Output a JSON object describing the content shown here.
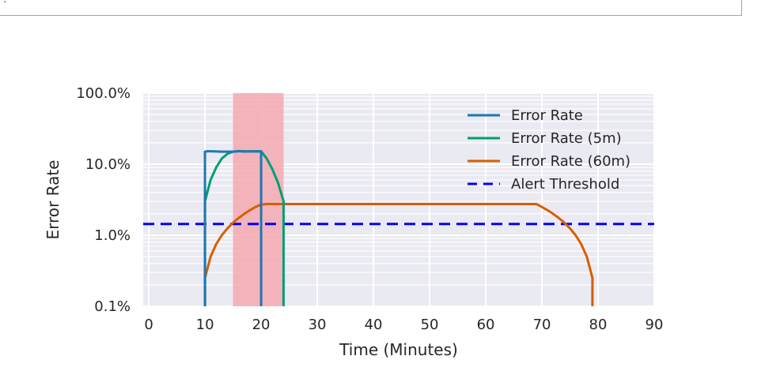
{
  "top_panel": {
    "text": "'."
  },
  "chart_data": {
    "type": "line",
    "title": "",
    "xlabel": "Time (Minutes)",
    "ylabel": "Error Rate",
    "xlim": [
      -1,
      90
    ],
    "ylim": [
      0.001,
      1.0
    ],
    "yscale": "log",
    "xticks": [
      0,
      10,
      20,
      30,
      40,
      50,
      60,
      70,
      80,
      90
    ],
    "xtick_labels": [
      "0",
      "10",
      "20",
      "30",
      "40",
      "50",
      "60",
      "70",
      "80",
      "90"
    ],
    "yticks": [
      0.001,
      0.01,
      0.1,
      1.0
    ],
    "ytick_labels": [
      "0.1%",
      "1.0%",
      "10.0%",
      "100.0%"
    ],
    "grid": true,
    "background": "#eaeaf2",
    "legend_position": "top-right",
    "highlight_span": {
      "x": [
        15,
        24
      ],
      "color": "#f4a9b0"
    },
    "series": [
      {
        "name": "Error Rate",
        "color": "#1f77b4",
        "style": "solid",
        "x": [
          10,
          10,
          10.5,
          11,
          12,
          13,
          14,
          15,
          16,
          17,
          18,
          19,
          20,
          20,
          20
        ],
        "y": [
          0.001,
          0.15,
          0.152,
          0.152,
          0.151,
          0.15,
          0.15,
          0.15,
          0.152,
          0.152,
          0.151,
          0.151,
          0.151,
          0.02,
          0.001
        ]
      },
      {
        "name": "Error Rate (5m)",
        "color": "#009e73",
        "style": "solid",
        "x": [
          10,
          10,
          10,
          11,
          12,
          13,
          14,
          15,
          16,
          17,
          18,
          19,
          20,
          21,
          22,
          23,
          24,
          24
        ],
        "y": [
          0.001,
          0.003,
          0.03,
          0.06,
          0.09,
          0.12,
          0.14,
          0.15,
          0.153,
          0.15,
          0.152,
          0.152,
          0.152,
          0.12,
          0.085,
          0.055,
          0.03,
          0.001
        ]
      },
      {
        "name": "Error Rate (60m)",
        "color": "#d55e00",
        "style": "solid",
        "x": [
          10,
          10,
          11,
          12,
          13,
          14,
          15,
          16,
          17,
          18,
          19,
          20,
          21,
          22,
          23,
          24,
          30,
          40,
          50,
          60,
          69,
          70,
          71,
          72,
          73,
          74,
          75,
          76,
          77,
          78,
          79,
          79
        ],
        "y": [
          0.001,
          0.0025,
          0.005,
          0.0075,
          0.01,
          0.0125,
          0.015,
          0.0175,
          0.02,
          0.0225,
          0.025,
          0.027,
          0.0275,
          0.0275,
          0.0275,
          0.0275,
          0.0275,
          0.0275,
          0.0275,
          0.0275,
          0.0275,
          0.025,
          0.0225,
          0.02,
          0.0175,
          0.015,
          0.0125,
          0.01,
          0.0075,
          0.005,
          0.0025,
          0.001
        ]
      },
      {
        "name": "Alert Threshold",
        "color": "#0000ff",
        "style": "dashed",
        "x": [
          -1,
          90
        ],
        "y": [
          0.0144,
          0.0144
        ]
      }
    ]
  }
}
